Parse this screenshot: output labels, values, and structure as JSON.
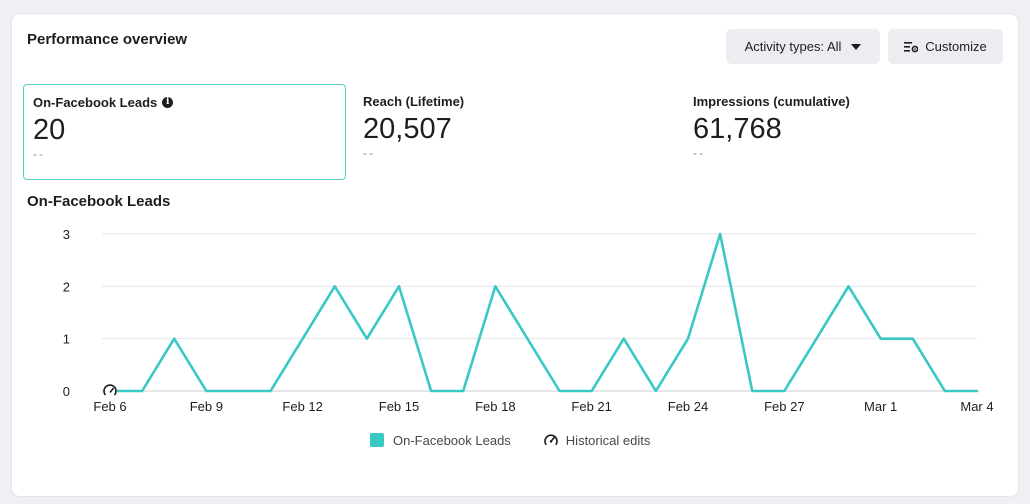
{
  "panel": {
    "title": "Performance overview",
    "activity_button": "Activity types: All",
    "customize_button": "Customize"
  },
  "metrics": [
    {
      "label": "On-Facebook Leads",
      "value": "20",
      "sub": "--"
    },
    {
      "label": "Reach (Lifetime)",
      "value": "20,507",
      "sub": "--"
    },
    {
      "label": "Impressions (cumulative)",
      "value": "61,768",
      "sub": "--"
    }
  ],
  "chart_title": "On-Facebook Leads",
  "legend": {
    "series_label": "On-Facebook Leads",
    "edits_label": "Historical edits"
  },
  "colors": {
    "accent": "#3ac8c4",
    "grid": "#e4e6eb",
    "text": "#1c1e21"
  },
  "chart_data": {
    "type": "line",
    "title": "On-Facebook Leads",
    "x": [
      "Feb 6",
      "Feb 7",
      "Feb 8",
      "Feb 9",
      "Feb 10",
      "Feb 11",
      "Feb 12",
      "Feb 13",
      "Feb 14",
      "Feb 15",
      "Feb 16",
      "Feb 17",
      "Feb 18",
      "Feb 19",
      "Feb 20",
      "Feb 21",
      "Feb 22",
      "Feb 23",
      "Feb 24",
      "Feb 25",
      "Feb 26",
      "Feb 27",
      "Feb 28",
      "Feb 29",
      "Mar 1",
      "Mar 2",
      "Mar 3",
      "Mar 4"
    ],
    "tick_labels": [
      "Feb 6",
      "Feb 9",
      "Feb 12",
      "Feb 15",
      "Feb 18",
      "Feb 21",
      "Feb 24",
      "Feb 27",
      "Mar 1",
      "Mar 4"
    ],
    "y_ticks": [
      0,
      1,
      2,
      3
    ],
    "ylim": [
      0,
      3
    ],
    "grid": true,
    "legend_position": "bottom-center",
    "series": [
      {
        "name": "On-Facebook Leads",
        "values": [
          0,
          0,
          1,
          0,
          0,
          0,
          1,
          2,
          1,
          2,
          0,
          0,
          2,
          1,
          0,
          0,
          1,
          0,
          1,
          3,
          0,
          0,
          1,
          2,
          1,
          1,
          0,
          0
        ]
      }
    ],
    "annotations": [
      {
        "type": "historical-edit",
        "x": "Feb 6"
      }
    ]
  }
}
